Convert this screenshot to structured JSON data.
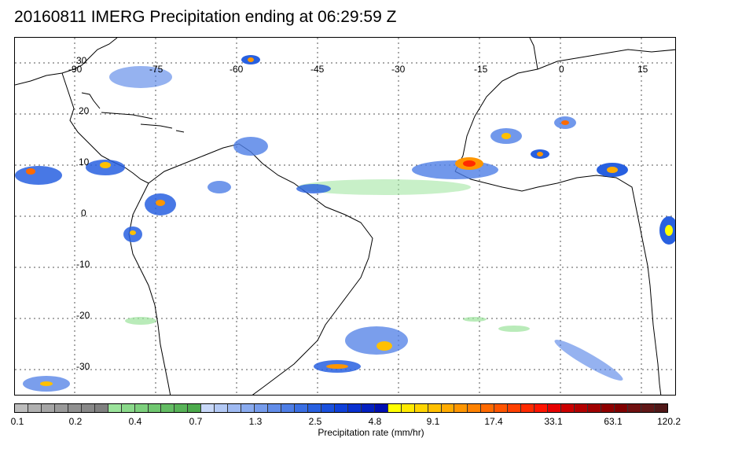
{
  "title": "20160811 IMERG Precipitation ending at 06:29:59 Z",
  "map": {
    "lon_labels": [
      "-90",
      "-75",
      "-60",
      "-45",
      "-30",
      "-15",
      "0",
      "15"
    ],
    "lat_labels": [
      "30",
      "20",
      "10",
      "0",
      "-10",
      "-20",
      "-30"
    ],
    "land_color": "#ffffff",
    "coast_color": "#000000",
    "grid_color": "#555555"
  },
  "colorbar": {
    "title": "Precipitation rate (mm/hr)",
    "tick_labels": [
      "0.1",
      "0.2",
      "0.4",
      "0.7",
      "1.3",
      "2.5",
      "4.8",
      "9.1",
      "17.4",
      "33.1",
      "63.1",
      "120.2"
    ],
    "colors": [
      "#bdbdbd",
      "#b0b0b0",
      "#a5a5a5",
      "#9a9a9a",
      "#909090",
      "#888888",
      "#808080",
      "#9be39b",
      "#8ad98a",
      "#7dd07d",
      "#70c770",
      "#64bd64",
      "#58b358",
      "#4caa4c",
      "#c8d8f8",
      "#b3c9f5",
      "#9fbaf2",
      "#8aabef",
      "#769cec",
      "#628de9",
      "#4e7ee6",
      "#3a6fe3",
      "#2860e0",
      "#1a50dd",
      "#0f40d9",
      "#0830d0",
      "#0420c0",
      "#0010b0",
      "#ffff00",
      "#ffea00",
      "#ffd500",
      "#ffc000",
      "#ffab00",
      "#ff9600",
      "#ff8200",
      "#ff6a00",
      "#ff5500",
      "#ff4000",
      "#ff2a00",
      "#ff1500",
      "#e60000",
      "#cc0000",
      "#b30000",
      "#a00000",
      "#8f0000",
      "#800000",
      "#701010",
      "#601818",
      "#501818"
    ]
  }
}
